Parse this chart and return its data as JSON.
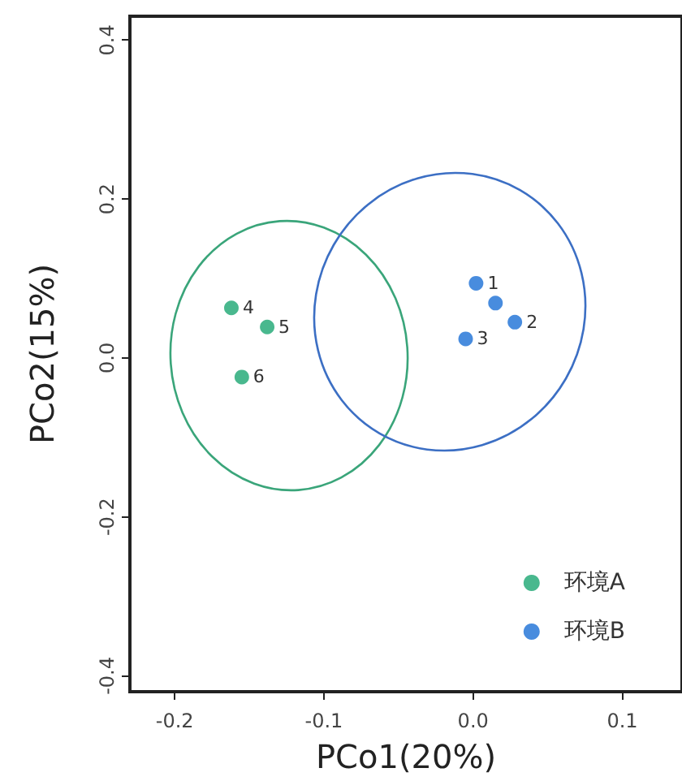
{
  "chart_data": {
    "type": "scatter",
    "xlabel": "PCo1(20%)",
    "ylabel": "PCo2(15%)",
    "xlim": [
      -0.23,
      0.14
    ],
    "ylim": [
      -0.42,
      0.43
    ],
    "xticks": [
      -0.2,
      -0.1,
      {
        "value": 0,
        "label": "0.0"
      },
      0.1
    ],
    "yticks": [
      -0.4,
      -0.2,
      {
        "value": 0,
        "label": "0.0"
      },
      0.2,
      0.4
    ],
    "grid": false,
    "legend": "bottom right",
    "annotations": [
      {
        "text": "4",
        "x": -0.162,
        "y": 0.063
      },
      {
        "text": "5",
        "x": -0.138,
        "y": 0.039
      },
      {
        "text": "6",
        "x": -0.155,
        "y": -0.024
      },
      {
        "text": "1",
        "x": 0.002,
        "y": 0.094
      },
      {
        "text": "2",
        "x": 0.028,
        "y": 0.045
      },
      {
        "text": "3",
        "x": -0.005,
        "y": 0.024
      }
    ],
    "series": [
      {
        "name": "环境A",
        "color": "#1ca672",
        "marker": "circle",
        "x": [
          -0.162,
          -0.138,
          -0.155
        ],
        "values": [
          0.063,
          0.039,
          -0.024
        ]
      },
      {
        "name": "环境B",
        "color": "#1a6fd6",
        "marker": "circle",
        "x": [
          0.002,
          0.015,
          0.028,
          -0.005
        ],
        "values": [
          0.094,
          0.069,
          0.045,
          0.024
        ]
      }
    ]
  }
}
